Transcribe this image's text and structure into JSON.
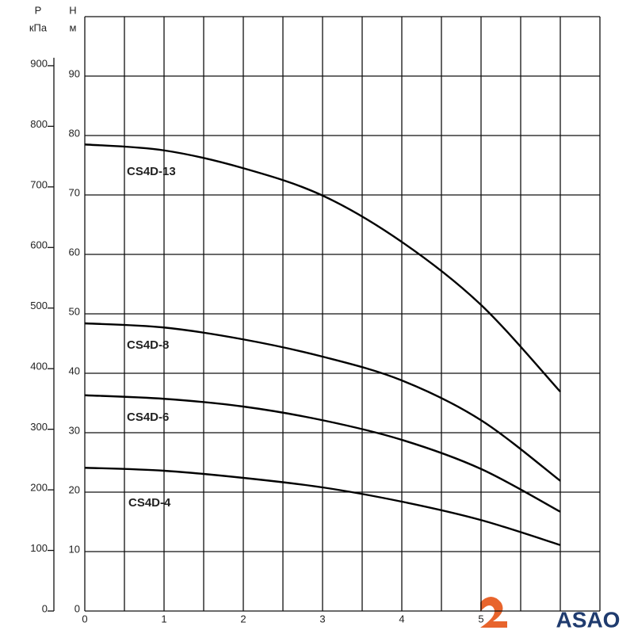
{
  "chart_data": {
    "type": "line",
    "y_label": "Н",
    "y_unit": "м",
    "y2_label": "P",
    "y2_unit": "кПа",
    "x": [
      0,
      1,
      2,
      3,
      4,
      5,
      6
    ],
    "series": [
      {
        "name": "CS4D-13",
        "color": "#000000",
        "values": [
          78.5,
          77.5,
          74.5,
          69.9,
          62.1,
          51.5,
          36.9
        ]
      },
      {
        "name": "CS4D-8",
        "color": "#000000",
        "values": [
          48.4,
          47.7,
          45.7,
          42.8,
          38.8,
          32.1,
          21.9
        ]
      },
      {
        "name": "CS4D-6",
        "color": "#000000",
        "values": [
          36.3,
          35.7,
          34.4,
          32.1,
          28.8,
          23.9,
          16.7
        ]
      },
      {
        "name": "CS4D-4",
        "color": "#000000",
        "values": [
          24.1,
          23.6,
          22.4,
          20.8,
          18.4,
          15.3,
          11.1
        ]
      }
    ],
    "xlim": [
      0,
      6.5
    ],
    "xticks": [
      0,
      1,
      2,
      3,
      4,
      5
    ],
    "ylim": [
      0,
      100
    ],
    "yticks": [
      0,
      10,
      20,
      30,
      40,
      50,
      60,
      70,
      80,
      90
    ],
    "y2lim": [
      0,
      981
    ],
    "y2ticks": [
      0,
      100,
      200,
      300,
      400,
      500,
      600,
      700,
      800,
      900
    ],
    "grid": true,
    "grid_step_x": 0.5,
    "logo": "ASAO"
  }
}
